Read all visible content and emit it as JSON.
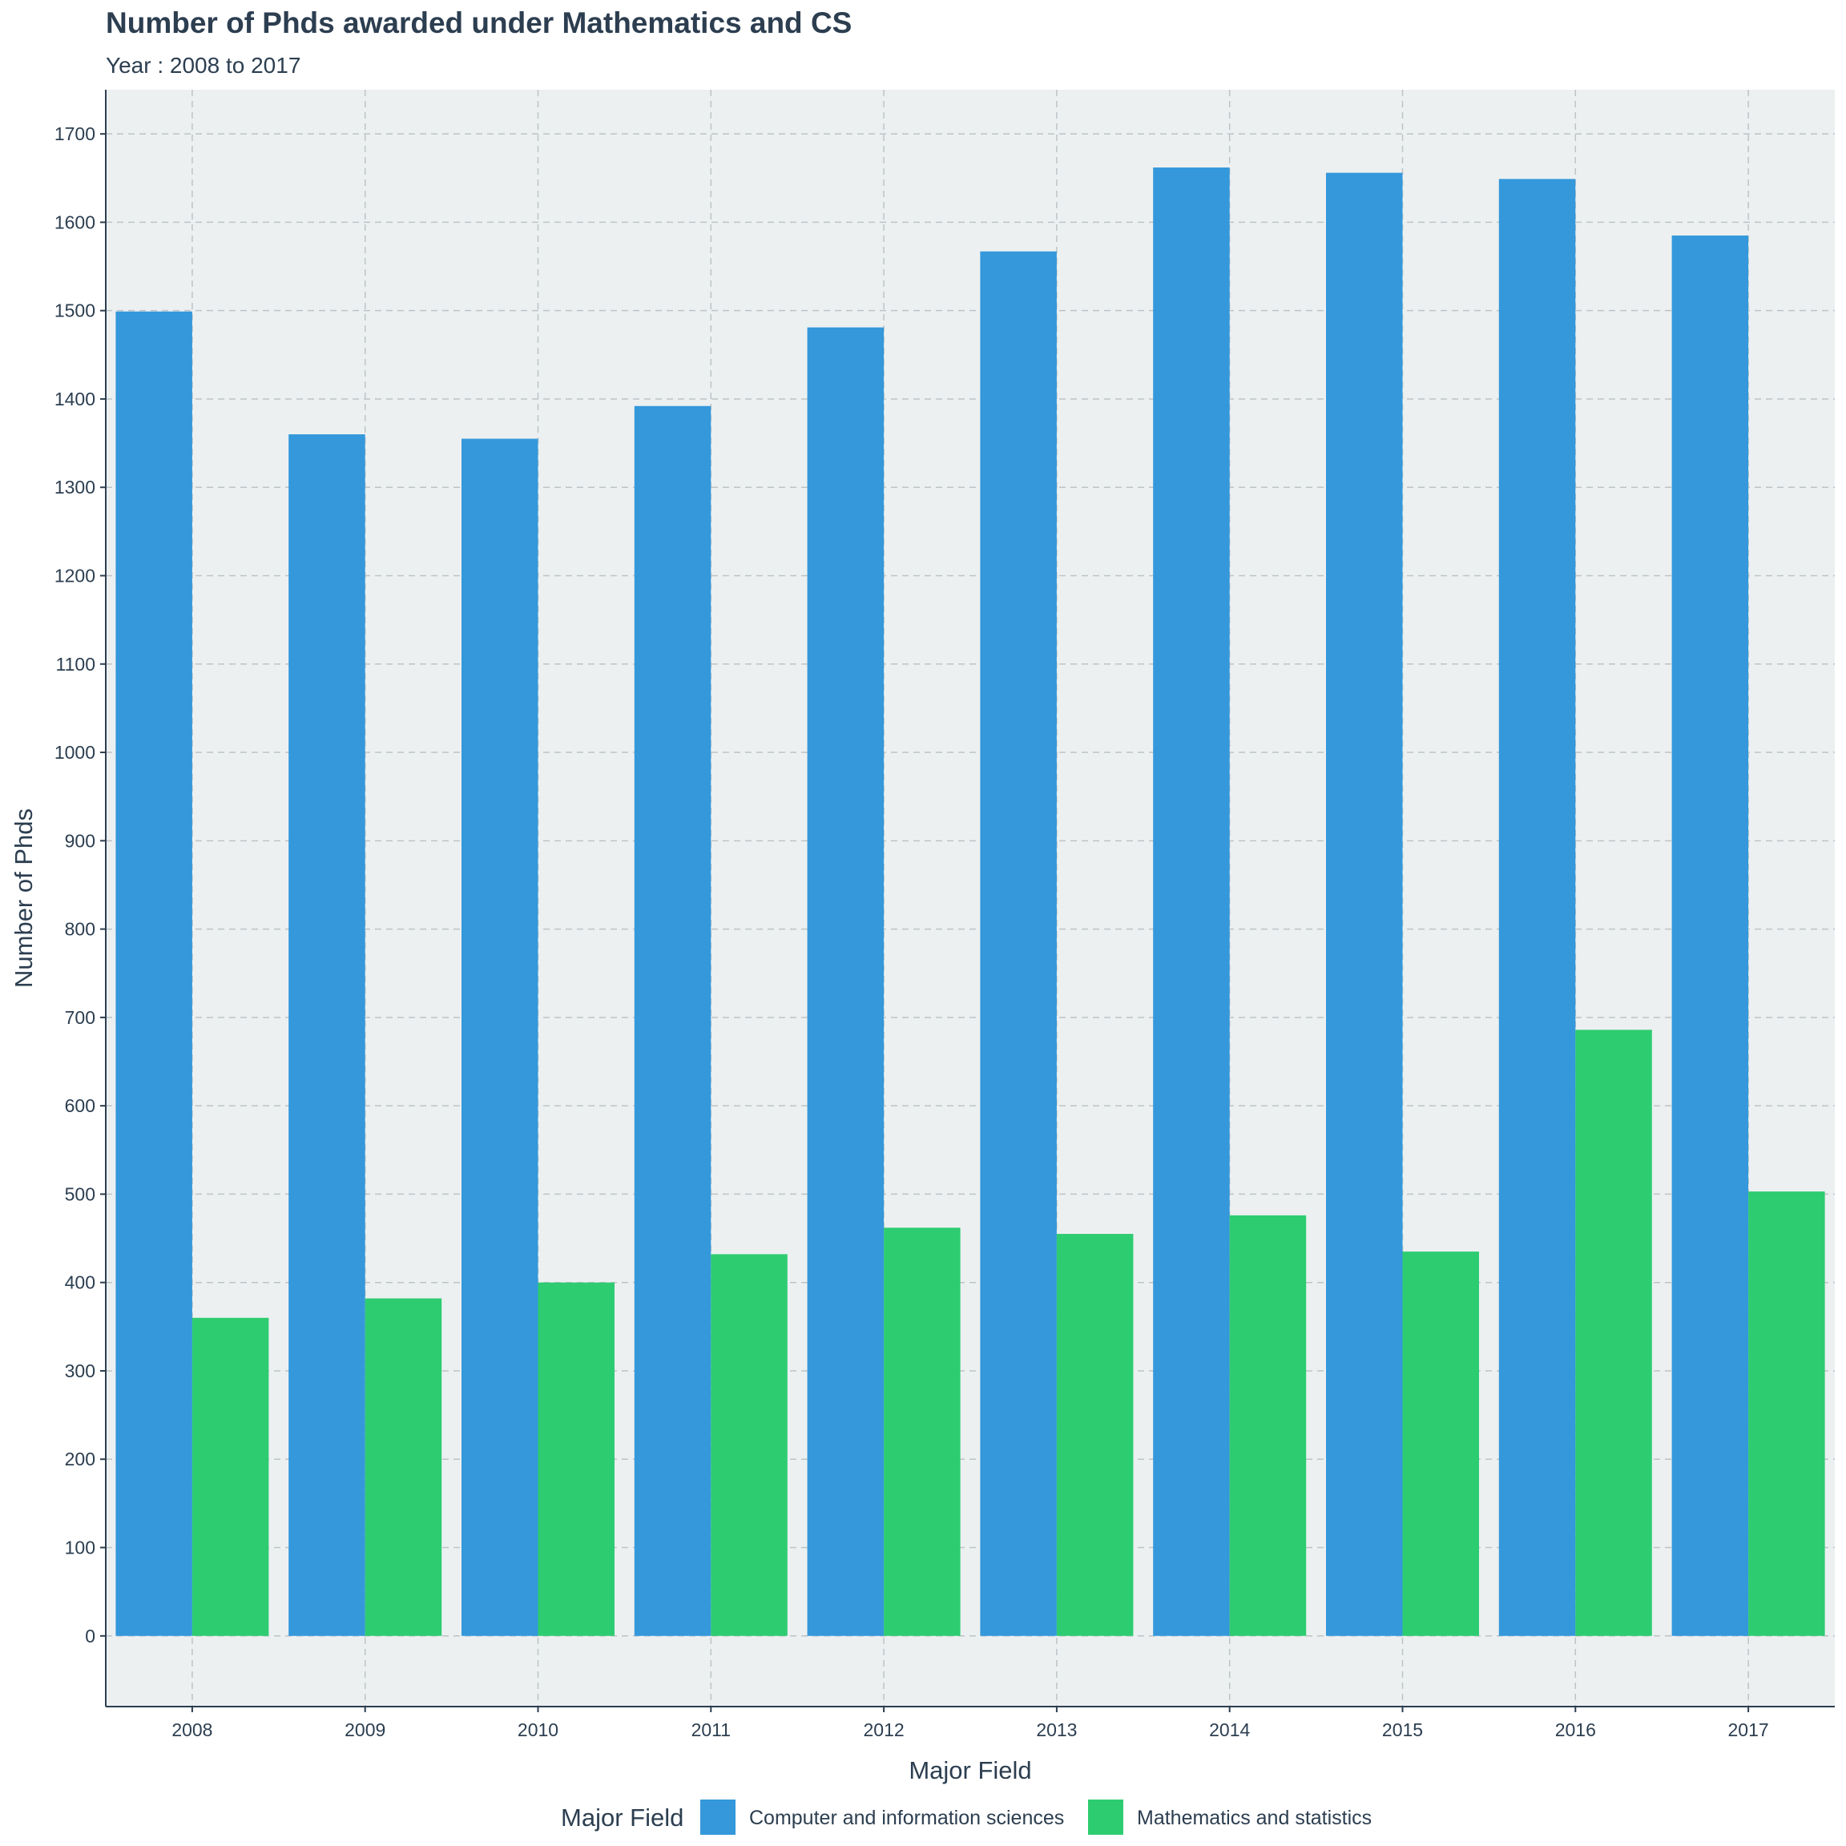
{
  "chart_data": {
    "type": "bar",
    "title": "Number of Phds awarded under Mathematics and CS",
    "subtitle": "Year : 2008 to 2017",
    "xlabel": "Major Field",
    "ylabel": "Number of Phds",
    "categories": [
      "2008",
      "2009",
      "2010",
      "2011",
      "2012",
      "2013",
      "2014",
      "2015",
      "2016",
      "2017"
    ],
    "series": [
      {
        "name": "Computer and information sciences",
        "color": "#3498db",
        "values": [
          1499,
          1360,
          1355,
          1392,
          1481,
          1567,
          1662,
          1656,
          1649,
          1585
        ]
      },
      {
        "name": "Mathematics and statistics",
        "color": "#2ecc71",
        "values": [
          360,
          382,
          400,
          432,
          462,
          455,
          476,
          435,
          686,
          503
        ]
      }
    ],
    "ylim": [
      -80,
      1750
    ],
    "yticks": [
      0,
      100,
      200,
      300,
      400,
      500,
      600,
      700,
      800,
      900,
      1000,
      1100,
      1200,
      1300,
      1400,
      1500,
      1600,
      1700
    ],
    "grid": true,
    "legend": {
      "title": "Major Field",
      "position": "bottom"
    },
    "panel_background": "#ecf0f1",
    "grid_color": "#bdc3c7",
    "text_color": "#2c3e50"
  }
}
